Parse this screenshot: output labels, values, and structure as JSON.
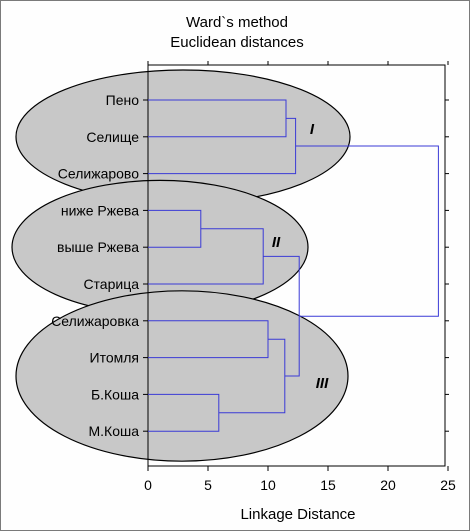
{
  "chart_data": {
    "type": "dendrogram",
    "title": [
      "Ward`s method",
      "Euclidean distances"
    ],
    "xlabel": "Linkage Distance",
    "xlim": [
      0,
      25
    ],
    "xticks": [
      0,
      5,
      10,
      15,
      20,
      25
    ],
    "orientation": "horizontal",
    "leaves": [
      "Пено",
      "Селище",
      "Селижарово",
      "ниже Ржева",
      "выше Ржева",
      "Старица",
      "Селижаровка",
      "Итомля",
      "Б.Коша",
      "М.Коша"
    ],
    "merges": [
      {
        "a": "Пено",
        "b": "Селище",
        "height": 11.5
      },
      {
        "a": "ниже Ржева",
        "b": "выше Ржева",
        "height": 4.4
      },
      {
        "a": "Б.Коша",
        "b": "М.Коша",
        "height": 5.9
      },
      {
        "a": "Пено+Селище",
        "b": "Селижарово",
        "height": 12.3
      },
      {
        "a": "ниже Ржева+выше Ржева",
        "b": "Старица",
        "height": 9.6
      },
      {
        "a": "Селижаровка",
        "b": "Итомля",
        "height": 10.0
      },
      {
        "a": "Селижаровка+Итомля",
        "b": "Б.Коша+М.Коша",
        "height": 11.4
      },
      {
        "a": "group II",
        "b": "group III",
        "height": 12.6
      },
      {
        "a": "group I",
        "b": "group II+III",
        "height": 24.2
      }
    ],
    "groups": [
      {
        "label": "I",
        "members": [
          "Пено",
          "Селище",
          "Селижарово"
        ]
      },
      {
        "label": "II",
        "members": [
          "ниже Ржева",
          "выше Ржева",
          "Старица"
        ]
      },
      {
        "label": "III",
        "members": [
          "Селижаровка",
          "Итомля",
          "Б.Коша",
          "М.Коша"
        ]
      }
    ],
    "colors": {
      "links": "#3a3ad6",
      "ellipse_fill": "#c8c8c8",
      "ellipse_stroke": "#000000",
      "axis": "#000000"
    },
    "grid": false
  }
}
